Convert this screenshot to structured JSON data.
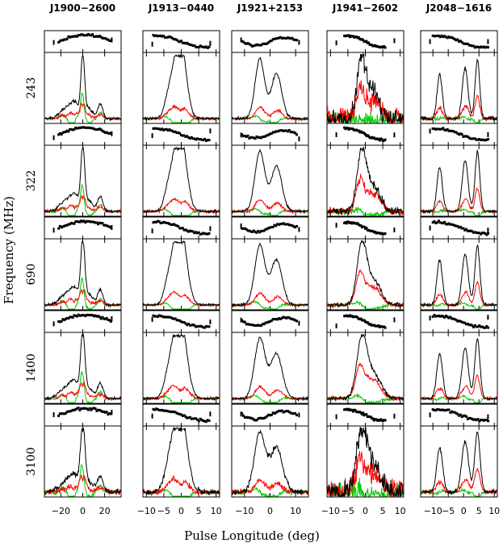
{
  "chart_data": {
    "type": "line",
    "xlabel": "Pulse Longitude (deg)",
    "ylabel": "Frequency (MHz)",
    "legend": "none",
    "series_colors": {
      "total_intensity": "#000000",
      "linear_polarization": "#ff0000",
      "circular_polarization": "#00cc00",
      "position_angle": "#000000"
    },
    "pulsars": [
      {
        "name": "J1900−2600",
        "xlim": [
          -35,
          35
        ],
        "xticks": [
          -20,
          0,
          20
        ],
        "xtick_labels": [
          "−20",
          "0",
          "20"
        ],
        "components": [
          {
            "c": -15,
            "w": 6,
            "a": 0.18
          },
          {
            "c": -7,
            "w": 4,
            "a": 0.22
          },
          {
            "c": 0,
            "w": 1.8,
            "a": 1.0
          },
          {
            "c": 5,
            "w": 4,
            "a": 0.18
          },
          {
            "c": 16,
            "w": 2.5,
            "a": 0.25
          }
        ],
        "lin_frac": 0.28,
        "circ_frac": 0.45,
        "circ_sign": -1,
        "pa_range": [
          -22,
          27
        ],
        "pa_shape": "dip"
      },
      {
        "name": "J1913−0440",
        "xlim": [
          -11,
          11
        ],
        "xticks": [
          -10,
          -5,
          0,
          5,
          10
        ],
        "xtick_labels": [
          "−10",
          "−5",
          "0",
          "5",
          "10"
        ],
        "components": [
          {
            "c": -3.5,
            "w": 1.3,
            "a": 0.45
          },
          {
            "c": -1.2,
            "w": 1.3,
            "a": 0.7
          },
          {
            "c": 0.3,
            "w": 1.6,
            "a": 0.95
          }
        ],
        "lin_frac": 0.18,
        "circ_frac": 0.22,
        "circ_sign": -1,
        "pa_range": [
          -8,
          8
        ],
        "pa_shape": "sweep"
      },
      {
        "name": "J1921+2153",
        "xlim": [
          -15,
          15
        ],
        "xticks": [
          -10,
          0,
          10
        ],
        "xtick_labels": [
          "−10",
          "0",
          "10"
        ],
        "components": [
          {
            "c": -4,
            "w": 2.0,
            "a": 1.0
          },
          {
            "c": 2.5,
            "w": 2.2,
            "a": 0.75
          }
        ],
        "lin_frac": 0.15,
        "circ_frac": 0.12,
        "circ_sign": -1,
        "pa_range": [
          -11,
          11
        ],
        "pa_shape": "wave"
      },
      {
        "name": "J1941−2602",
        "xlim": [
          -11,
          11
        ],
        "xticks": [
          -10,
          -5,
          0,
          5,
          10
        ],
        "xtick_labels": [
          "−10",
          "−5",
          "0",
          "5",
          "10"
        ],
        "components": [
          {
            "c": -1,
            "w": 1.4,
            "a": 1.0
          },
          {
            "c": 2.5,
            "w": 2.0,
            "a": 0.4
          }
        ],
        "lin_frac": 0.55,
        "circ_frac": 0.15,
        "circ_sign": -1,
        "pa_range": [
          -6,
          6
        ],
        "pa_shape": "sweep"
      },
      {
        "name": "J2048−1616",
        "xlim": [
          -14,
          11
        ],
        "xticks": [
          -10,
          -5,
          0,
          5,
          10
        ],
        "xtick_labels": [
          "−10",
          "−5",
          "0",
          "5",
          "10"
        ],
        "components": [
          {
            "c": -7.8,
            "w": 0.9,
            "a": 0.75
          },
          {
            "c": 0.5,
            "w": 1.0,
            "a": 0.85
          },
          {
            "c": 4.5,
            "w": 0.8,
            "a": 1.0
          }
        ],
        "lin_frac": 0.3,
        "circ_frac": 0.12,
        "circ_sign": 1,
        "pa_range": [
          -10,
          8
        ],
        "pa_shape": "sweep"
      }
    ],
    "frequencies": [
      {
        "label": "243",
        "noise": [
          0.02,
          0.02,
          0.02,
          0.15,
          0.03
        ]
      },
      {
        "label": "322",
        "noise": [
          0.02,
          0.02,
          0.02,
          0.06,
          0.02
        ]
      },
      {
        "label": "690",
        "noise": [
          0.02,
          0.015,
          0.02,
          0.03,
          0.02
        ]
      },
      {
        "label": "1400",
        "noise": [
          0.02,
          0.02,
          0.02,
          0.03,
          0.02
        ]
      },
      {
        "label": "3100",
        "noise": [
          0.04,
          0.04,
          0.04,
          0.18,
          0.03
        ]
      }
    ]
  }
}
